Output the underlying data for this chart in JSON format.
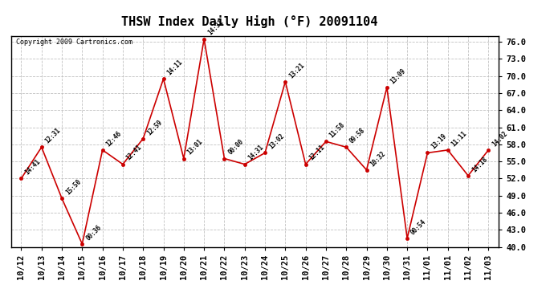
{
  "title": "THSW Index Daily High (°F) 20091104",
  "copyright": "Copyright 2009 Cartronics.com",
  "x_labels": [
    "10/12",
    "10/13",
    "10/14",
    "10/15",
    "10/16",
    "10/17",
    "10/18",
    "10/19",
    "10/20",
    "10/21",
    "10/22",
    "10/23",
    "10/24",
    "10/25",
    "10/26",
    "10/27",
    "10/28",
    "10/29",
    "10/30",
    "10/31",
    "11/01",
    "11/01",
    "11/02",
    "11/03"
  ],
  "values": [
    52.0,
    57.5,
    48.5,
    40.5,
    57.0,
    54.5,
    59.0,
    69.5,
    55.5,
    76.5,
    55.5,
    54.5,
    56.5,
    69.0,
    54.5,
    58.5,
    57.5,
    53.5,
    68.0,
    41.5,
    56.5,
    57.0,
    52.5,
    57.0
  ],
  "time_labels": [
    "14:41",
    "12:31",
    "15:50",
    "00:36",
    "12:46",
    "12:41",
    "12:59",
    "14:11",
    "13:01",
    "14:31",
    "00:00",
    "14:31",
    "13:02",
    "13:21",
    "12:11",
    "11:58",
    "09:58",
    "10:32",
    "13:09",
    "00:54",
    "13:19",
    "11:11",
    "14:18",
    "14:02"
  ],
  "ylim": [
    40.0,
    77.0
  ],
  "yticks": [
    40.0,
    43.0,
    46.0,
    49.0,
    52.0,
    55.0,
    58.0,
    61.0,
    64.0,
    67.0,
    70.0,
    73.0,
    76.0
  ],
  "line_color": "#cc0000",
  "marker_color": "#cc0000",
  "background_color": "#ffffff",
  "grid_color": "#bbbbbb",
  "title_fontsize": 11,
  "tick_fontsize": 7.5,
  "label_fontsize": 6.5
}
